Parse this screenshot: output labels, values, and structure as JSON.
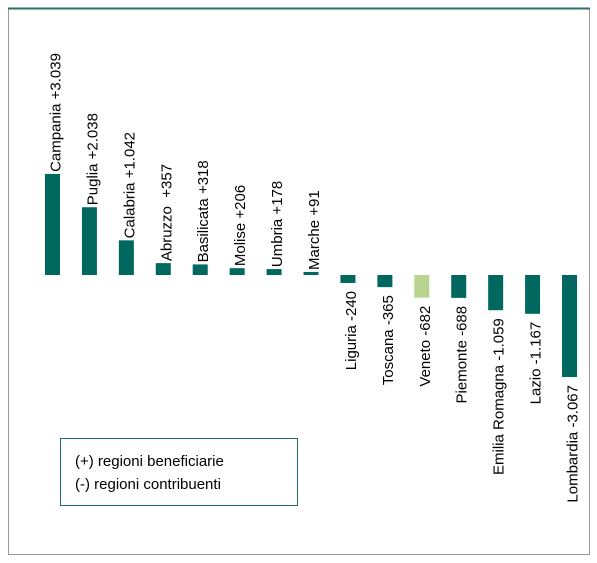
{
  "chart_data": {
    "type": "bar",
    "categories": [
      "Campania",
      "Puglia",
      "Calabria",
      "Abruzzo",
      "Basilicata",
      "Molise",
      "Umbria",
      "Marche",
      "Liguria",
      "Toscana",
      "Veneto",
      "Piemonte",
      "Emilia Romagna",
      "Lazio",
      "Lombardia"
    ],
    "values": [
      3039,
      2038,
      1042,
      357,
      318,
      206,
      178,
      91,
      -240,
      -365,
      -682,
      -688,
      -1059,
      -1167,
      -3067
    ],
    "value_labels": [
      "+3.039",
      "+2.038",
      "+1.042",
      " +357",
      "+318",
      "+206",
      "+178",
      "+91",
      "-240",
      "-365",
      "-682",
      "-688",
      "-1.059",
      "-1.167",
      "-3.067"
    ],
    "colors": [
      "#00685f",
      "#00685f",
      "#00685f",
      "#00685f",
      "#00685f",
      "#00685f",
      "#00685f",
      "#00685f",
      "#00685f",
      "#00685f",
      "#b8d48e",
      "#00685f",
      "#00685f",
      "#00685f",
      "#00685f"
    ],
    "annotations": [
      "(+) regioni beneficiarie",
      "(-) regioni contribuenti"
    ]
  }
}
